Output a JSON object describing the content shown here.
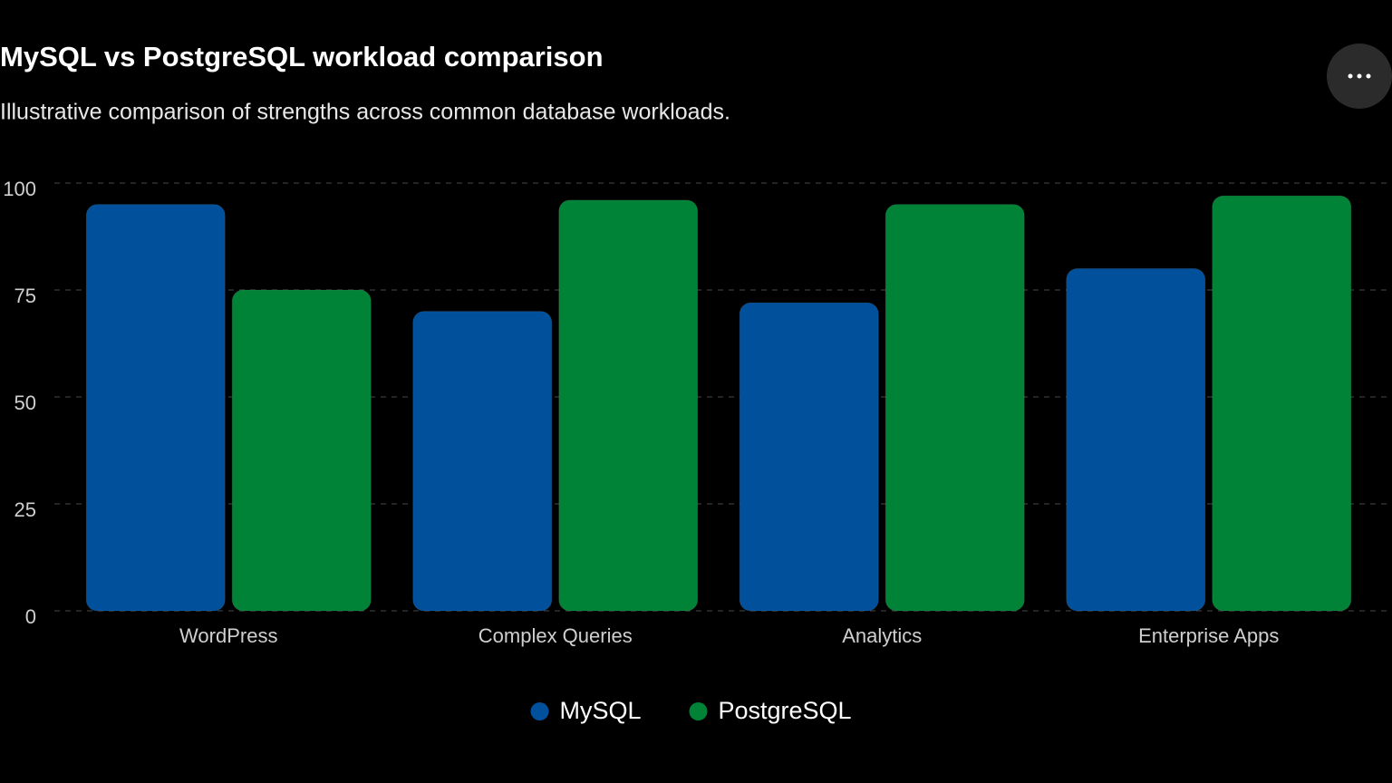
{
  "chart_data": {
    "type": "bar",
    "title": "MySQL vs PostgreSQL workload comparison",
    "subtitle": "Illustrative comparison of strengths across common database workloads.",
    "categories": [
      "WordPress",
      "Complex Queries",
      "Analytics",
      "Enterprise Apps"
    ],
    "series": [
      {
        "name": "MySQL",
        "color": "#01509c",
        "values": [
          95,
          70,
          72,
          80
        ]
      },
      {
        "name": "PostgreSQL",
        "color": "#008237",
        "values": [
          75,
          96,
          95,
          97
        ]
      }
    ],
    "ylim": [
      0,
      100
    ],
    "yticks": [
      0,
      25,
      50,
      75,
      100
    ],
    "grid": true,
    "legend": "bottom"
  }
}
